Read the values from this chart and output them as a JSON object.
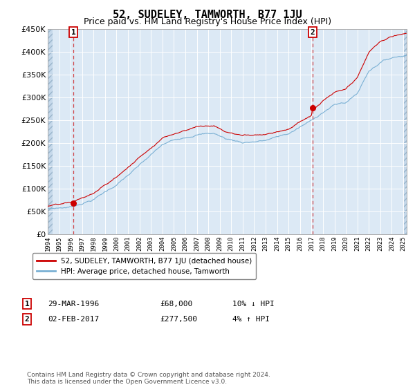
{
  "title": "52, SUDELEY, TAMWORTH, B77 1JU",
  "subtitle": "Price paid vs. HM Land Registry's House Price Index (HPI)",
  "ylim": [
    0,
    450000
  ],
  "yticks": [
    0,
    50000,
    100000,
    150000,
    200000,
    250000,
    300000,
    350000,
    400000,
    450000
  ],
  "xlim_start": 1994.0,
  "xlim_end": 2025.3,
  "transaction1": {
    "date_num": 1996.25,
    "price": 68000,
    "label": "1",
    "pct": "10% ↓ HPI",
    "date_str": "29-MAR-1996",
    "price_str": "£68,000"
  },
  "transaction2": {
    "date_num": 2017.09,
    "price": 277500,
    "label": "2",
    "pct": "4% ↑ HPI",
    "date_str": "02-FEB-2017",
    "price_str": "£277,500"
  },
  "line1_label": "52, SUDELEY, TAMWORTH, B77 1JU (detached house)",
  "line2_label": "HPI: Average price, detached house, Tamworth",
  "footer": "Contains HM Land Registry data © Crown copyright and database right 2024.\nThis data is licensed under the Open Government Licence v3.0.",
  "bg_color": "#dce9f5",
  "grid_color": "#ffffff",
  "red_line_color": "#cc0000",
  "blue_line_color": "#7ab0d4",
  "hatch_bg": "#c5d8ea"
}
